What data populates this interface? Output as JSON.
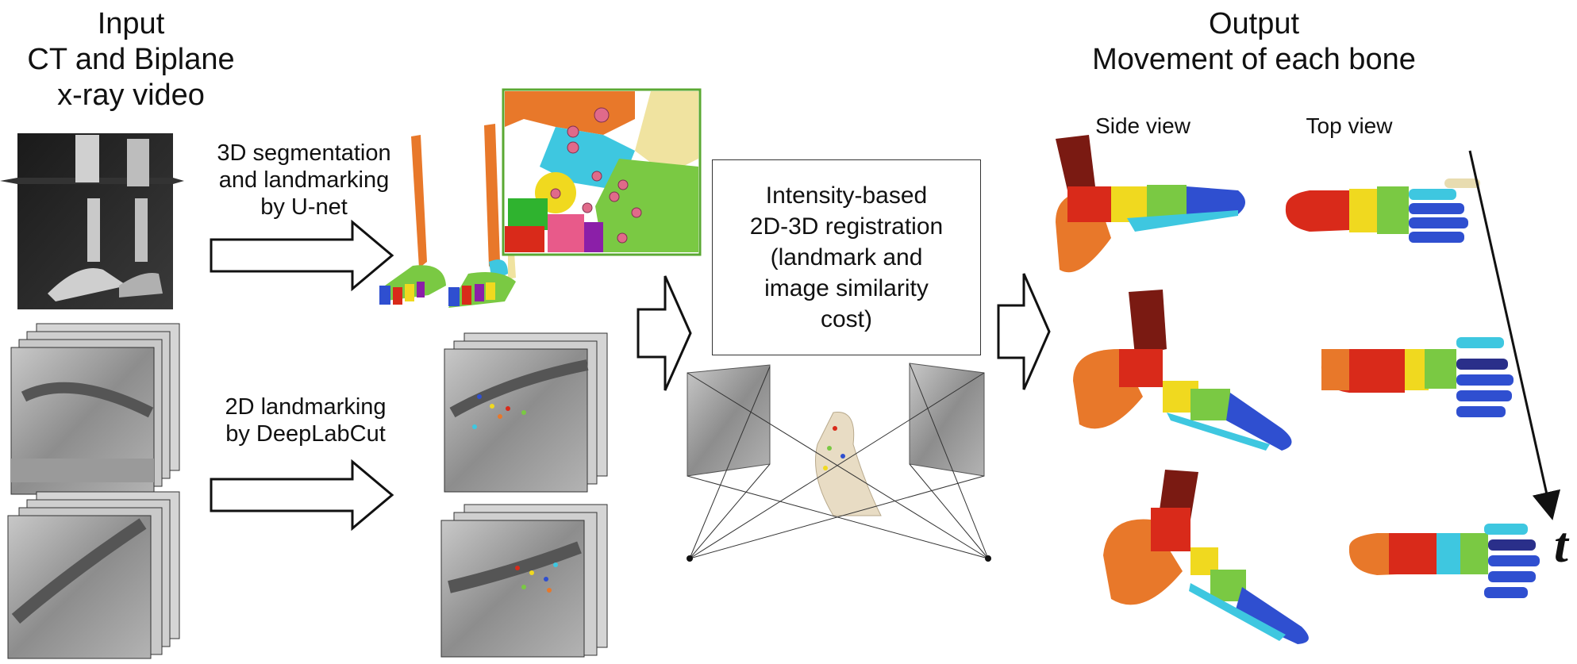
{
  "input": {
    "line1": "Input",
    "line2": "CT and Biplane",
    "line3": "x-ray video"
  },
  "output": {
    "line1": "Output",
    "line2": "Movement of each bone"
  },
  "segmentation": {
    "line1": "3D segmentation",
    "line2": "and landmarking",
    "line3": "by U-net"
  },
  "landmarking2d": {
    "line1": "2D landmarking",
    "line2": "by DeepLabCut"
  },
  "registration": {
    "line1": "Intensity-based",
    "line2": "2D-3D registration",
    "line3": "(landmark and",
    "line4": "image similarity",
    "line5": "cost)"
  },
  "views": {
    "side": "Side view",
    "top": "Top view"
  },
  "time_axis": "t",
  "colors": {
    "arrow_stroke": "#111111",
    "inset_border": "#5aa832",
    "bone_orange": "#e8782a",
    "bone_red": "#d92a1a",
    "bone_yellow": "#f0d91f",
    "bone_green": "#7ac943",
    "bone_blue": "#2f4fd0",
    "bone_cyan": "#3ec7e0",
    "bone_darkred": "#7a1a12"
  }
}
